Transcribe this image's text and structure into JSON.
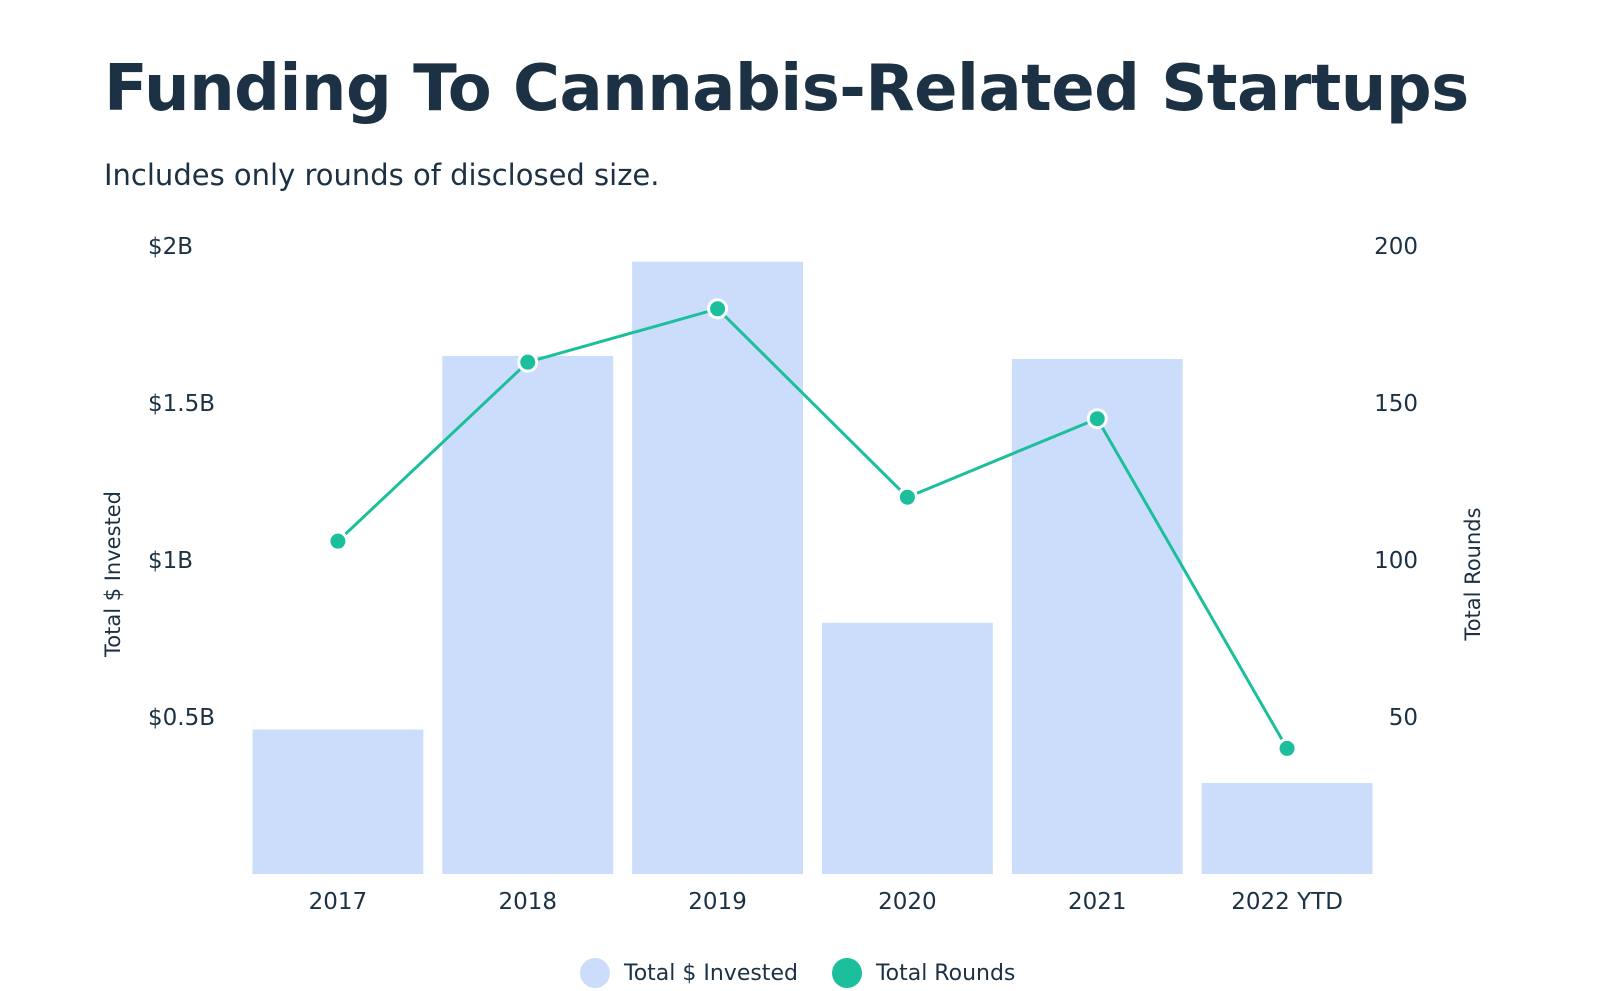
{
  "header": {
    "title": "Funding To Cannabis-Related Startups",
    "subtitle": "Includes only rounds of disclosed size."
  },
  "legend": {
    "bar_label": "Total $ Invested",
    "line_label": "Total Rounds"
  },
  "chart_data": {
    "type": "bar",
    "title": "Funding To Cannabis-Related Startups",
    "subtitle": "Includes only rounds of disclosed size.",
    "categories": [
      "2017",
      "2018",
      "2019",
      "2020",
      "2021",
      "2022 YTD"
    ],
    "series": [
      {
        "name": "Total $ Invested",
        "type": "bar",
        "axis": "left",
        "color": "#ccddfc",
        "values": [
          0.46,
          1.65,
          1.95,
          0.8,
          1.64,
          0.29
        ]
      },
      {
        "name": "Total Rounds",
        "type": "line",
        "axis": "right",
        "color": "#1cbf9b",
        "values": [
          106,
          163,
          180,
          120,
          145,
          40
        ]
      }
    ],
    "y_left": {
      "label": "Total $ Invested",
      "ylim": [
        0,
        2
      ],
      "ticks": [
        0.5,
        1,
        1.5,
        2
      ],
      "tick_labels": [
        "$0.5B",
        "$1B",
        "$1.5B",
        "$2B"
      ]
    },
    "y_right": {
      "label": "Total Rounds",
      "ylim": [
        0,
        200
      ],
      "ticks": [
        50,
        100,
        150,
        200
      ],
      "tick_labels": [
        "50",
        "100",
        "150",
        "200"
      ]
    },
    "grid": false,
    "legend_position": "bottom-center"
  }
}
